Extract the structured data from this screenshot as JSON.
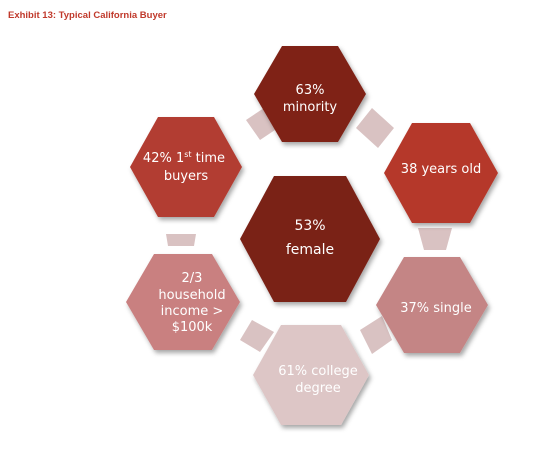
{
  "exhibit": {
    "title": "Exhibit 13: Typical California Buyer",
    "title_color": "#c0392b"
  },
  "hexagons": {
    "center": {
      "line1": "53%",
      "line2": "female",
      "fill": "#7a2018",
      "text_color": "#ffffff"
    },
    "top": {
      "line1": "63%",
      "line2": "minority",
      "fill": "#7f2419",
      "text_color": "#ffffff"
    },
    "top_right": {
      "line1": "38 years old",
      "fill": "#b5382b",
      "text_color": "#ffffff"
    },
    "bottom_right": {
      "line1": "37% single",
      "fill": "#c48585",
      "text_color": "#ffffff"
    },
    "bottom": {
      "line1": "61% college",
      "line2": "degree",
      "fill": "#ddc6c6",
      "text_color": "#ffffff"
    },
    "bottom_left": {
      "line1": "2/3",
      "line2": "household",
      "line3": "income >",
      "line4": "$100k",
      "fill": "#c98080",
      "text_color": "#ffffff"
    },
    "top_left": {
      "line1_pre": "42% 1",
      "line1_sup": "st",
      "line1_post": " time",
      "line2": "buyers",
      "fill": "#b23c32",
      "text_color": "#ffffff"
    }
  },
  "connector_color": "#d9c2c2"
}
